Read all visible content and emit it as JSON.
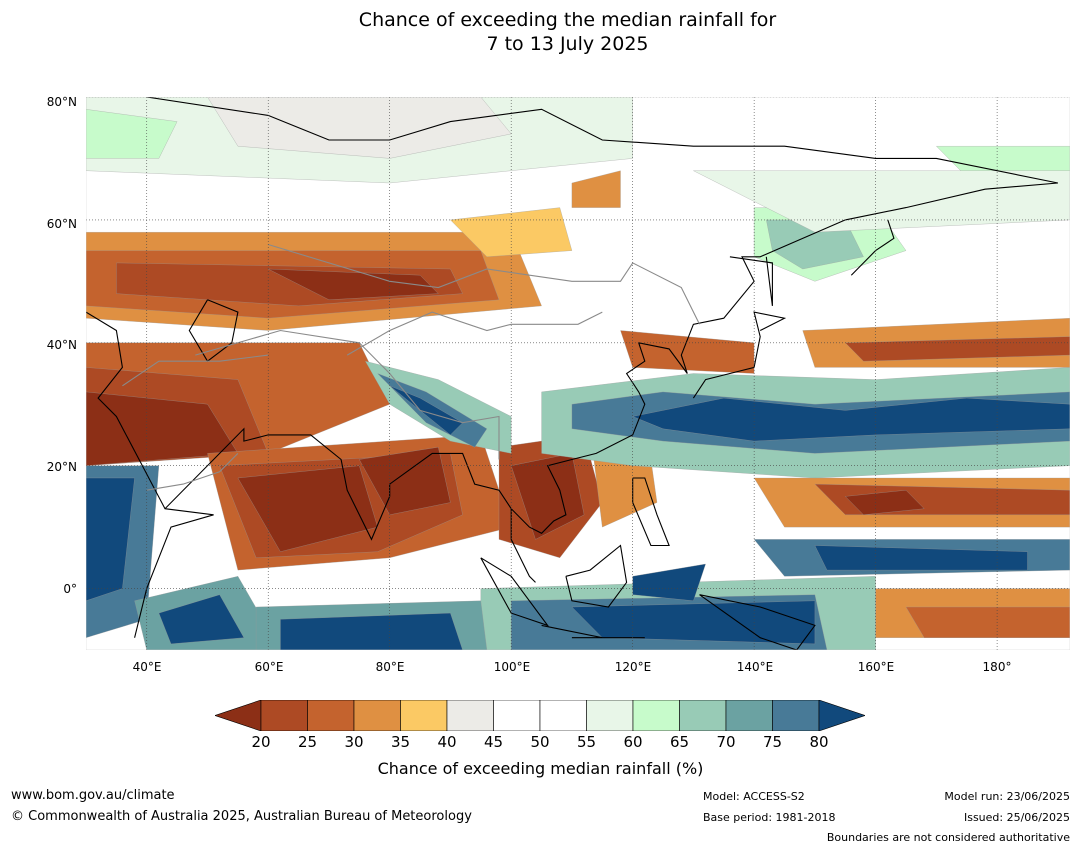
{
  "title": {
    "line1": "Chance of exceeding the median rainfall for",
    "line2": "7 to 13 July 2025"
  },
  "map": {
    "lat_labels": [
      "80°N",
      "60°N",
      "40°N",
      "20°N",
      "0°"
    ],
    "lon_labels": [
      "40°E",
      "60°E",
      "80°E",
      "100°E",
      "120°E",
      "140°E",
      "160°E",
      "180°"
    ],
    "lat_range": [
      -10,
      80
    ],
    "lon_range": [
      30,
      192
    ],
    "colors": {
      "20": "#8c2f16",
      "25": "#ad4a24",
      "30": "#c4632e",
      "35": "#df9042",
      "40": "#fbc964",
      "45": "#ecebe7",
      "55": "#ffffff",
      "60": "#e8f6e8",
      "65": "#c7fbcb",
      "70": "#98cbb6",
      "75": "#6ba2a2",
      "80": "#487a97",
      "above": "#11497c"
    }
  },
  "colorbar": {
    "ticks": [
      "20",
      "25",
      "30",
      "35",
      "40",
      "45",
      "50",
      "55",
      "60",
      "65",
      "70",
      "75",
      "80"
    ],
    "colors": [
      "#ad4a24",
      "#c4632e",
      "#df9042",
      "#fbc964",
      "#ecebe7",
      "#ffffff",
      "#ffffff",
      "#e8f6e8",
      "#c7fbcb",
      "#98cbb6",
      "#6ba2a2",
      "#487a97"
    ],
    "below_color": "#8c2f16",
    "above_color": "#11497c",
    "label": "Chance of exceeding median rainfall (%)"
  },
  "footer": {
    "url": "www.bom.gov.au/climate",
    "copyright": "© Commonwealth of Australia 2025, Australian Bureau of Meteorology",
    "model": "Model: ACCESS-S2",
    "base_period": "Base period: 1981-2018",
    "model_run": "Model run: 23/06/2025",
    "issued": "Issued: 25/06/2025",
    "disclaimer": "Boundaries are not considered authoritative"
  }
}
